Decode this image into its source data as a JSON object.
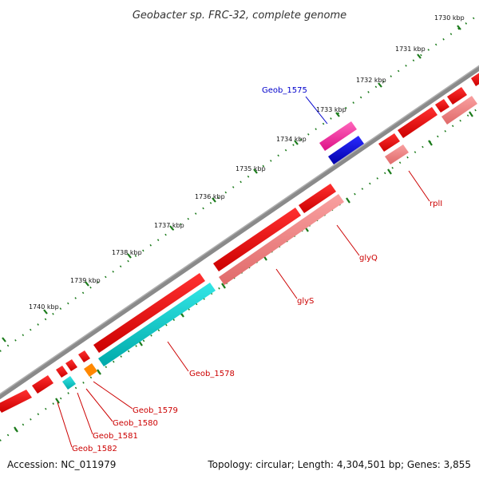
{
  "title": "Geobacter sp. FRC-32, complete genome",
  "accession": "Accession: NC_011979",
  "topology": "Topology: circular; Length: 4,304,501 bp; Genes: 3,855",
  "kbp_labels": [
    "1730 kbp",
    "1731 kbp",
    "1732 kbp",
    "1733 kbp",
    "1734 kbp",
    "1735 kbp",
    "1736 kbp",
    "1737 kbp",
    "1738 kbp",
    "1739 kbp",
    "1740 kbp"
  ],
  "gene_labels": [
    {
      "name": "Geob_1575",
      "color": "#0000cc"
    },
    {
      "name": "rplI",
      "color": "#cc0000"
    },
    {
      "name": "glyQ",
      "color": "#cc0000"
    },
    {
      "name": "glyS",
      "color": "#cc0000"
    },
    {
      "name": "Geob_1578",
      "color": "#cc0000"
    },
    {
      "name": "Geob_1579",
      "color": "#cc0000"
    },
    {
      "name": "Geob_1580",
      "color": "#cc0000"
    },
    {
      "name": "Geob_1581",
      "color": "#cc0000"
    },
    {
      "name": "Geob_1582",
      "color": "#cc0000"
    }
  ],
  "colors": {
    "backbone": "#7a7a7a",
    "forward_gene": "#ee0000",
    "reverse_gene": "#f08080",
    "cyan_gene": "#00cccc",
    "magenta_gene": "#ff3399",
    "blue_gene": "#0000dd",
    "orange_gene": "#ff8800",
    "tick_green": "#1a7a1a"
  }
}
